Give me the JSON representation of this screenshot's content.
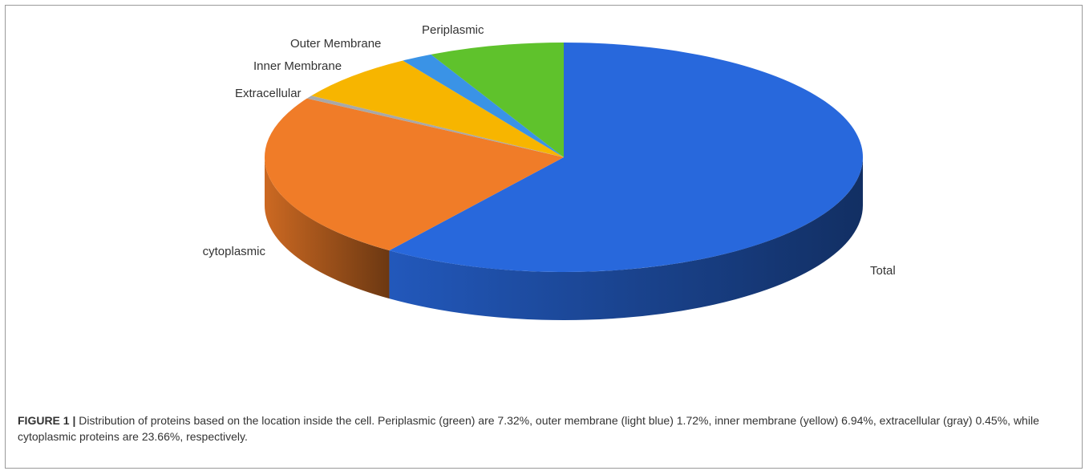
{
  "chart_data": {
    "type": "pie",
    "title": "",
    "slices": [
      {
        "label": "Total",
        "value": 59.91,
        "color": "#2868dc"
      },
      {
        "label": "cytoplasmic",
        "value": 23.66,
        "color": "#f07c28"
      },
      {
        "label": "Extracellular",
        "value": 0.45,
        "color": "#a8a8a8"
      },
      {
        "label": "Inner Membrane",
        "value": 6.94,
        "color": "#f7b500"
      },
      {
        "label": "Outer Membrane",
        "value": 1.72,
        "color": "#3a93e6"
      },
      {
        "label": "Periplasmic",
        "value": 7.32,
        "color": "#5fc22c"
      }
    ],
    "legend": "none",
    "labels_outside": true
  },
  "caption": {
    "number": "FIGURE 1 |",
    "text": " Distribution of proteins based on the location inside the cell. Periplasmic (green) are 7.32%, outer membrane (light blue) 1.72%, inner membrane (yellow) 6.94%, extracellular (gray) 0.45%, while cytoplasmic proteins are 23.66%, respectively."
  }
}
